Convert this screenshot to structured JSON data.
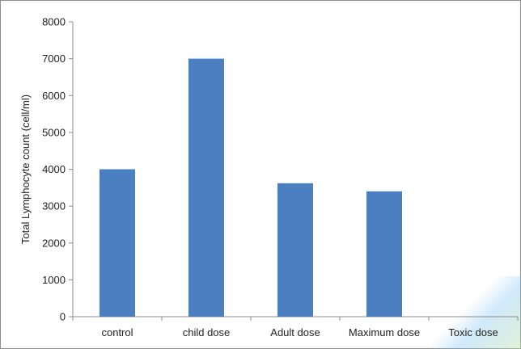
{
  "chart_data": {
    "type": "bar",
    "categories": [
      "control",
      "child dose",
      "Adult dose",
      "Maximum dose",
      "Toxic dose"
    ],
    "values": [
      4000,
      7000,
      3620,
      3400,
      0
    ],
    "title": "",
    "xlabel": "",
    "ylabel": "Total Lymphocyte count (cell/ml)",
    "ylim": [
      0,
      8000
    ],
    "yticks": [
      0,
      1000,
      2000,
      3000,
      4000,
      5000,
      6000,
      7000,
      8000
    ],
    "grid": false,
    "legend": "none",
    "bar_color": "#4a7fc1",
    "axis_color": "#8c8c8c"
  }
}
